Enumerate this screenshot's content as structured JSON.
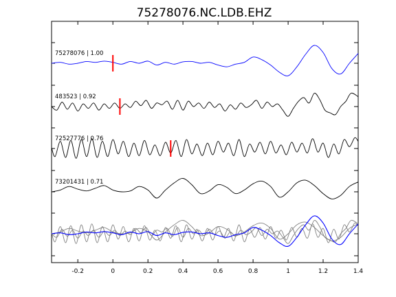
{
  "chart_data": {
    "type": "line",
    "title": "75278076.NC.LDB.EHZ",
    "xlabel": "",
    "ylabel": "",
    "xlim": [
      -0.35,
      1.4
    ],
    "xticks": [
      -0.2,
      0,
      0.2,
      0.4,
      0.6,
      0.8,
      1,
      1.2,
      1.4
    ],
    "xtick_labels": [
      "-0.2",
      "0",
      "0.2",
      "0.4",
      "0.6",
      "0.8",
      "1",
      "1.2",
      "1.4"
    ],
    "grid": false,
    "colors": {
      "reference": "#0000ff",
      "trace": "#000000",
      "overlay": "#808080",
      "pick": "#ff0000",
      "axes": "#000000"
    },
    "traces": [
      {
        "label": "75278076 | 1.00",
        "color": "#0000ff",
        "pick_time": 0.0,
        "points": [
          [
            -0.35,
            0.0
          ],
          [
            -0.3,
            0.05
          ],
          [
            -0.25,
            -0.05
          ],
          [
            -0.2,
            0.0
          ],
          [
            -0.15,
            0.1
          ],
          [
            -0.1,
            0.05
          ],
          [
            -0.05,
            0.12
          ],
          [
            0.0,
            0.05
          ],
          [
            0.05,
            -0.05
          ],
          [
            0.1,
            0.1
          ],
          [
            0.15,
            0.0
          ],
          [
            0.2,
            0.12
          ],
          [
            0.25,
            -0.1
          ],
          [
            0.3,
            0.05
          ],
          [
            0.35,
            -0.05
          ],
          [
            0.4,
            0.08
          ],
          [
            0.45,
            0.1
          ],
          [
            0.5,
            0.0
          ],
          [
            0.55,
            0.05
          ],
          [
            0.6,
            -0.1
          ],
          [
            0.65,
            -0.2
          ],
          [
            0.7,
            -0.05
          ],
          [
            0.75,
            0.05
          ],
          [
            0.8,
            0.35
          ],
          [
            0.85,
            0.2
          ],
          [
            0.9,
            -0.1
          ],
          [
            0.95,
            -0.5
          ],
          [
            1.0,
            -0.7
          ],
          [
            1.05,
            -0.2
          ],
          [
            1.1,
            0.5
          ],
          [
            1.15,
            1.0
          ],
          [
            1.2,
            0.6
          ],
          [
            1.25,
            -0.3
          ],
          [
            1.3,
            -0.6
          ],
          [
            1.35,
            0.0
          ],
          [
            1.4,
            0.55
          ]
        ]
      },
      {
        "label": "483523 | 0.92",
        "color": "#000000",
        "pick_time": 0.04,
        "points": [
          [
            -0.35,
            0.0
          ],
          [
            -0.32,
            -0.2
          ],
          [
            -0.29,
            0.25
          ],
          [
            -0.26,
            -0.15
          ],
          [
            -0.23,
            0.2
          ],
          [
            -0.2,
            -0.25
          ],
          [
            -0.17,
            0.15
          ],
          [
            -0.14,
            -0.1
          ],
          [
            -0.11,
            0.2
          ],
          [
            -0.08,
            -0.2
          ],
          [
            -0.05,
            0.15
          ],
          [
            -0.02,
            -0.1
          ],
          [
            0.01,
            0.2
          ],
          [
            0.04,
            -0.1
          ],
          [
            0.07,
            0.15
          ],
          [
            0.1,
            -0.05
          ],
          [
            0.13,
            0.3
          ],
          [
            0.16,
            0.05
          ],
          [
            0.19,
            0.35
          ],
          [
            0.22,
            -0.1
          ],
          [
            0.25,
            0.2
          ],
          [
            0.28,
            0.1
          ],
          [
            0.31,
            0.3
          ],
          [
            0.34,
            -0.15
          ],
          [
            0.37,
            0.35
          ],
          [
            0.4,
            -0.2
          ],
          [
            0.43,
            0.3
          ],
          [
            0.46,
            0.0
          ],
          [
            0.49,
            0.2
          ],
          [
            0.52,
            -0.1
          ],
          [
            0.55,
            0.25
          ],
          [
            0.58,
            -0.05
          ],
          [
            0.61,
            0.15
          ],
          [
            0.64,
            -0.25
          ],
          [
            0.67,
            0.1
          ],
          [
            0.7,
            -0.15
          ],
          [
            0.73,
            0.2
          ],
          [
            0.76,
            -0.05
          ],
          [
            0.79,
            0.1
          ],
          [
            0.82,
            0.35
          ],
          [
            0.85,
            -0.1
          ],
          [
            0.88,
            0.25
          ],
          [
            0.91,
            0.0
          ],
          [
            0.94,
            0.15
          ],
          [
            0.97,
            -0.2
          ],
          [
            1.0,
            -0.55
          ],
          [
            1.03,
            -0.1
          ],
          [
            1.06,
            0.3
          ],
          [
            1.09,
            0.5
          ],
          [
            1.12,
            0.2
          ],
          [
            1.15,
            0.75
          ],
          [
            1.18,
            0.4
          ],
          [
            1.21,
            -0.2
          ],
          [
            1.24,
            -0.35
          ],
          [
            1.27,
            -0.45
          ],
          [
            1.3,
            0.0
          ],
          [
            1.33,
            0.3
          ],
          [
            1.36,
            0.75
          ],
          [
            1.4,
            0.55
          ]
        ]
      },
      {
        "label": "72527776 | 0.76",
        "color": "#000000",
        "pick_time": 0.33,
        "points": [
          [
            -0.35,
            0.05
          ],
          [
            -0.33,
            -0.45
          ],
          [
            -0.3,
            0.4
          ],
          [
            -0.27,
            -0.5
          ],
          [
            -0.24,
            0.45
          ],
          [
            -0.21,
            -0.55
          ],
          [
            -0.18,
            0.5
          ],
          [
            -0.15,
            -0.45
          ],
          [
            -0.12,
            0.55
          ],
          [
            -0.09,
            -0.5
          ],
          [
            -0.06,
            0.4
          ],
          [
            -0.03,
            -0.45
          ],
          [
            0.0,
            0.5
          ],
          [
            0.03,
            -0.3
          ],
          [
            0.06,
            0.4
          ],
          [
            0.09,
            -0.45
          ],
          [
            0.12,
            0.3
          ],
          [
            0.15,
            -0.4
          ],
          [
            0.18,
            0.45
          ],
          [
            0.21,
            -0.35
          ],
          [
            0.24,
            0.2
          ],
          [
            0.27,
            -0.4
          ],
          [
            0.3,
            0.35
          ],
          [
            0.33,
            -0.25
          ],
          [
            0.36,
            0.45
          ],
          [
            0.39,
            -0.45
          ],
          [
            0.42,
            0.5
          ],
          [
            0.45,
            -0.3
          ],
          [
            0.48,
            0.25
          ],
          [
            0.51,
            -0.4
          ],
          [
            0.54,
            0.3
          ],
          [
            0.57,
            -0.35
          ],
          [
            0.6,
            0.4
          ],
          [
            0.63,
            -0.2
          ],
          [
            0.66,
            0.3
          ],
          [
            0.69,
            -0.4
          ],
          [
            0.72,
            0.5
          ],
          [
            0.75,
            -0.45
          ],
          [
            0.78,
            0.25
          ],
          [
            0.81,
            -0.2
          ],
          [
            0.84,
            0.35
          ],
          [
            0.87,
            -0.3
          ],
          [
            0.9,
            0.4
          ],
          [
            0.93,
            -0.25
          ],
          [
            0.96,
            0.2
          ],
          [
            0.99,
            -0.35
          ],
          [
            1.02,
            0.35
          ],
          [
            1.05,
            -0.2
          ],
          [
            1.08,
            0.3
          ],
          [
            1.11,
            -0.25
          ],
          [
            1.14,
            0.55
          ],
          [
            1.17,
            -0.2
          ],
          [
            1.2,
            0.3
          ],
          [
            1.23,
            -0.5
          ],
          [
            1.26,
            0.25
          ],
          [
            1.29,
            -0.3
          ],
          [
            1.32,
            0.5
          ],
          [
            1.35,
            0.1
          ],
          [
            1.38,
            0.6
          ],
          [
            1.4,
            0.4
          ]
        ]
      },
      {
        "label": "73201431 | 0.71",
        "color": "#000000",
        "pick_time": null,
        "points": [
          [
            -0.35,
            0.0
          ],
          [
            -0.3,
            0.1
          ],
          [
            -0.25,
            0.3
          ],
          [
            -0.2,
            0.15
          ],
          [
            -0.15,
            0.05
          ],
          [
            -0.1,
            0.2
          ],
          [
            -0.05,
            0.35
          ],
          [
            0.0,
            0.1
          ],
          [
            0.05,
            0.0
          ],
          [
            0.1,
            0.05
          ],
          [
            0.15,
            0.3
          ],
          [
            0.2,
            0.1
          ],
          [
            0.25,
            -0.35
          ],
          [
            0.3,
            0.1
          ],
          [
            0.35,
            0.5
          ],
          [
            0.4,
            0.75
          ],
          [
            0.45,
            0.4
          ],
          [
            0.5,
            -0.1
          ],
          [
            0.55,
            0.05
          ],
          [
            0.6,
            0.4
          ],
          [
            0.65,
            0.25
          ],
          [
            0.7,
            -0.1
          ],
          [
            0.75,
            0.1
          ],
          [
            0.8,
            0.45
          ],
          [
            0.85,
            0.6
          ],
          [
            0.9,
            0.3
          ],
          [
            0.95,
            -0.3
          ],
          [
            1.0,
            0.0
          ],
          [
            1.05,
            0.5
          ],
          [
            1.1,
            0.65
          ],
          [
            1.15,
            0.35
          ],
          [
            1.2,
            -0.1
          ],
          [
            1.25,
            -0.4
          ],
          [
            1.3,
            -0.2
          ],
          [
            1.35,
            0.3
          ],
          [
            1.4,
            0.55
          ]
        ]
      }
    ],
    "overlay": {
      "reference_color": "#0000ff",
      "gray_color": "#808080",
      "stack_traces": [
        0,
        1,
        2,
        3
      ]
    }
  }
}
